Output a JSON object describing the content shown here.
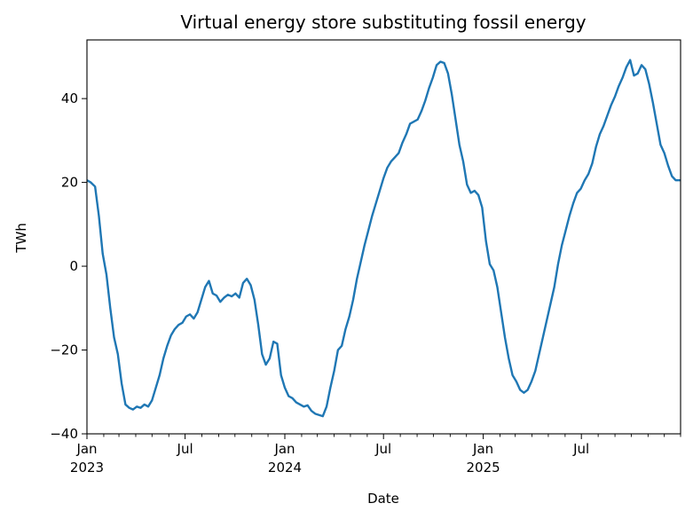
{
  "chart_data": {
    "type": "line",
    "title": "Virtual energy store substituting fossil energy",
    "xlabel": "Date",
    "ylabel": "TWh",
    "xlim": [
      "2023-01-01",
      "2025-12-31"
    ],
    "ylim": [
      -40,
      54
    ],
    "grid": false,
    "legend": "none",
    "y_ticks": [
      {
        "value": -40,
        "label": "−40"
      },
      {
        "value": -20,
        "label": "−20"
      },
      {
        "value": 0,
        "label": "0"
      },
      {
        "value": 20,
        "label": "20"
      },
      {
        "value": 40,
        "label": "40"
      }
    ],
    "x_major_ticks": [
      {
        "date": "2023-01-01",
        "label": "Jan",
        "sublabel": "2023"
      },
      {
        "date": "2023-07-01",
        "label": "Jul",
        "sublabel": ""
      },
      {
        "date": "2024-01-01",
        "label": "Jan",
        "sublabel": "2024"
      },
      {
        "date": "2024-07-01",
        "label": "Jul",
        "sublabel": ""
      },
      {
        "date": "2025-01-01",
        "label": "Jan",
        "sublabel": "2025"
      },
      {
        "date": "2025-07-01",
        "label": "Jul",
        "sublabel": ""
      }
    ],
    "series": [
      {
        "color": "#1f77b4",
        "points": [
          [
            "2023-01-01",
            20.5
          ],
          [
            "2023-01-08",
            20.0
          ],
          [
            "2023-01-16",
            19.0
          ],
          [
            "2023-01-23",
            12.0
          ],
          [
            "2023-01-30",
            3.0
          ],
          [
            "2023-02-06",
            -2.0
          ],
          [
            "2023-02-13",
            -10.0
          ],
          [
            "2023-02-20",
            -17.0
          ],
          [
            "2023-02-27",
            -21.0
          ],
          [
            "2023-03-06",
            -28.0
          ],
          [
            "2023-03-13",
            -33.0
          ],
          [
            "2023-03-20",
            -33.8
          ],
          [
            "2023-03-27",
            -34.2
          ],
          [
            "2023-04-03",
            -33.5
          ],
          [
            "2023-04-10",
            -33.8
          ],
          [
            "2023-04-17",
            -33.0
          ],
          [
            "2023-04-24",
            -33.5
          ],
          [
            "2023-05-01",
            -32.0
          ],
          [
            "2023-05-08",
            -29.0
          ],
          [
            "2023-05-15",
            -26.0
          ],
          [
            "2023-05-22",
            -22.0
          ],
          [
            "2023-05-29",
            -19.0
          ],
          [
            "2023-06-05",
            -16.5
          ],
          [
            "2023-06-12",
            -15.0
          ],
          [
            "2023-06-19",
            -14.0
          ],
          [
            "2023-06-26",
            -13.5
          ],
          [
            "2023-07-03",
            -12.0
          ],
          [
            "2023-07-10",
            -11.5
          ],
          [
            "2023-07-17",
            -12.5
          ],
          [
            "2023-07-24",
            -11.0
          ],
          [
            "2023-07-31",
            -8.0
          ],
          [
            "2023-08-07",
            -5.0
          ],
          [
            "2023-08-14",
            -3.5
          ],
          [
            "2023-08-21",
            -6.5
          ],
          [
            "2023-08-28",
            -7.0
          ],
          [
            "2023-09-04",
            -8.5
          ],
          [
            "2023-09-11",
            -7.5
          ],
          [
            "2023-09-18",
            -6.8
          ],
          [
            "2023-09-25",
            -7.2
          ],
          [
            "2023-10-02",
            -6.5
          ],
          [
            "2023-10-09",
            -7.5
          ],
          [
            "2023-10-16",
            -4.0
          ],
          [
            "2023-10-23",
            -3.0
          ],
          [
            "2023-10-30",
            -4.5
          ],
          [
            "2023-11-06",
            -8.0
          ],
          [
            "2023-11-13",
            -14.0
          ],
          [
            "2023-11-20",
            -21.0
          ],
          [
            "2023-11-27",
            -23.5
          ],
          [
            "2023-12-04",
            -22.0
          ],
          [
            "2023-12-11",
            -18.0
          ],
          [
            "2023-12-18",
            -18.5
          ],
          [
            "2023-12-25",
            -26.0
          ],
          [
            "2024-01-01",
            -29.0
          ],
          [
            "2024-01-08",
            -31.0
          ],
          [
            "2024-01-15",
            -31.5
          ],
          [
            "2024-01-22",
            -32.5
          ],
          [
            "2024-01-29",
            -33.0
          ],
          [
            "2024-02-05",
            -33.5
          ],
          [
            "2024-02-12",
            -33.2
          ],
          [
            "2024-02-19",
            -34.5
          ],
          [
            "2024-02-26",
            -35.2
          ],
          [
            "2024-03-04",
            -35.5
          ],
          [
            "2024-03-11",
            -35.8
          ],
          [
            "2024-03-18",
            -33.5
          ],
          [
            "2024-03-25",
            -29.0
          ],
          [
            "2024-04-01",
            -25.0
          ],
          [
            "2024-04-08",
            -20.0
          ],
          [
            "2024-04-15",
            -19.0
          ],
          [
            "2024-04-22",
            -15.0
          ],
          [
            "2024-04-29",
            -12.0
          ],
          [
            "2024-05-06",
            -8.0
          ],
          [
            "2024-05-13",
            -3.0
          ],
          [
            "2024-05-20",
            1.0
          ],
          [
            "2024-05-27",
            5.0
          ],
          [
            "2024-06-03",
            8.5
          ],
          [
            "2024-06-10",
            12.0
          ],
          [
            "2024-06-17",
            15.0
          ],
          [
            "2024-06-24",
            18.0
          ],
          [
            "2024-07-01",
            21.0
          ],
          [
            "2024-07-08",
            23.5
          ],
          [
            "2024-07-15",
            25.0
          ],
          [
            "2024-07-22",
            26.0
          ],
          [
            "2024-07-29",
            27.0
          ],
          [
            "2024-08-05",
            29.5
          ],
          [
            "2024-08-12",
            31.5
          ],
          [
            "2024-08-19",
            34.0
          ],
          [
            "2024-08-26",
            34.5
          ],
          [
            "2024-09-02",
            35.0
          ],
          [
            "2024-09-09",
            37.0
          ],
          [
            "2024-09-16",
            39.5
          ],
          [
            "2024-09-23",
            42.5
          ],
          [
            "2024-09-30",
            45.0
          ],
          [
            "2024-10-07",
            48.0
          ],
          [
            "2024-10-14",
            48.8
          ],
          [
            "2024-10-21",
            48.5
          ],
          [
            "2024-10-28",
            46.0
          ],
          [
            "2024-11-04",
            41.0
          ],
          [
            "2024-11-11",
            35.0
          ],
          [
            "2024-11-18",
            29.0
          ],
          [
            "2024-11-25",
            25.0
          ],
          [
            "2024-12-02",
            19.5
          ],
          [
            "2024-12-09",
            17.5
          ],
          [
            "2024-12-16",
            18.0
          ],
          [
            "2024-12-23",
            17.0
          ],
          [
            "2024-12-30",
            14.0
          ],
          [
            "2025-01-06",
            6.0
          ],
          [
            "2025-01-13",
            0.5
          ],
          [
            "2025-01-20",
            -1.0
          ],
          [
            "2025-01-27",
            -5.0
          ],
          [
            "2025-02-03",
            -11.0
          ],
          [
            "2025-02-10",
            -17.0
          ],
          [
            "2025-02-17",
            -22.0
          ],
          [
            "2025-02-24",
            -26.0
          ],
          [
            "2025-03-03",
            -27.5
          ],
          [
            "2025-03-10",
            -29.5
          ],
          [
            "2025-03-17",
            -30.2
          ],
          [
            "2025-03-24",
            -29.5
          ],
          [
            "2025-03-31",
            -27.5
          ],
          [
            "2025-04-07",
            -25.0
          ],
          [
            "2025-04-14",
            -21.0
          ],
          [
            "2025-04-21",
            -17.0
          ],
          [
            "2025-04-28",
            -13.0
          ],
          [
            "2025-05-05",
            -9.0
          ],
          [
            "2025-05-12",
            -5.0
          ],
          [
            "2025-05-19",
            0.5
          ],
          [
            "2025-05-26",
            5.0
          ],
          [
            "2025-06-02",
            8.5
          ],
          [
            "2025-06-09",
            12.0
          ],
          [
            "2025-06-16",
            15.0
          ],
          [
            "2025-06-23",
            17.5
          ],
          [
            "2025-06-30",
            18.5
          ],
          [
            "2025-07-07",
            20.5
          ],
          [
            "2025-07-14",
            22.0
          ],
          [
            "2025-07-21",
            24.5
          ],
          [
            "2025-07-28",
            28.5
          ],
          [
            "2025-08-04",
            31.5
          ],
          [
            "2025-08-11",
            33.5
          ],
          [
            "2025-08-18",
            36.0
          ],
          [
            "2025-08-25",
            38.5
          ],
          [
            "2025-09-01",
            40.5
          ],
          [
            "2025-09-08",
            43.0
          ],
          [
            "2025-09-15",
            45.0
          ],
          [
            "2025-09-22",
            47.5
          ],
          [
            "2025-09-29",
            49.2
          ],
          [
            "2025-10-06",
            45.5
          ],
          [
            "2025-10-13",
            46.0
          ],
          [
            "2025-10-20",
            48.0
          ],
          [
            "2025-10-27",
            47.0
          ],
          [
            "2025-11-03",
            43.5
          ],
          [
            "2025-11-10",
            39.0
          ],
          [
            "2025-11-17",
            34.0
          ],
          [
            "2025-11-24",
            29.0
          ],
          [
            "2025-12-01",
            27.0
          ],
          [
            "2025-12-08",
            24.0
          ],
          [
            "2025-12-15",
            21.5
          ],
          [
            "2025-12-22",
            20.5
          ],
          [
            "2025-12-31",
            20.5
          ]
        ]
      }
    ]
  }
}
